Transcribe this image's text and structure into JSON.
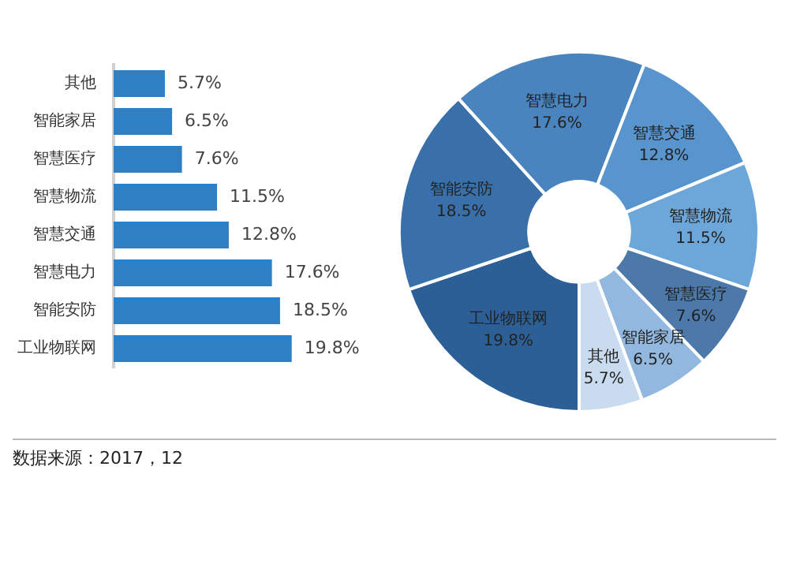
{
  "chart_data": [
    {
      "type": "bar",
      "orientation": "horizontal",
      "categories": [
        "其他",
        "智能家居",
        "智慧医疗",
        "智慧物流",
        "智慧交通",
        "智慧电力",
        "智能安防",
        "工业物联网"
      ],
      "values": [
        5.7,
        6.5,
        7.6,
        11.5,
        12.8,
        17.6,
        18.5,
        19.8
      ],
      "color": "#2f7fc4",
      "value_labels": [
        "5.7%",
        "6.5%",
        "7.6%",
        "11.5%",
        "12.8%",
        "17.6%",
        "18.5%",
        "19.8%"
      ],
      "legend": false,
      "tick_labels": "y",
      "annotations": [
        "数据来源：2017，12"
      ]
    },
    {
      "type": "donut",
      "categories": [
        "工业物联网",
        "智能安防",
        "智慧电力",
        "智慧交通",
        "智慧物流",
        "智慧医疗",
        "智能家居",
        "其他"
      ],
      "values": [
        19.8,
        18.5,
        17.6,
        12.8,
        11.5,
        7.6,
        6.5,
        5.7
      ],
      "colors": [
        "#2c5f96",
        "#3a70aa",
        "#4a84bf",
        "#5895cf",
        "#6da7da",
        "#4c79aa",
        "#93b8df",
        "#c9dbef"
      ],
      "value_labels": [
        "19.8%",
        "18.5%",
        "17.6%",
        "12.8%",
        "11.5%",
        "7.6%",
        "6.5%",
        "5.7%"
      ],
      "legend": false
    }
  ]
}
